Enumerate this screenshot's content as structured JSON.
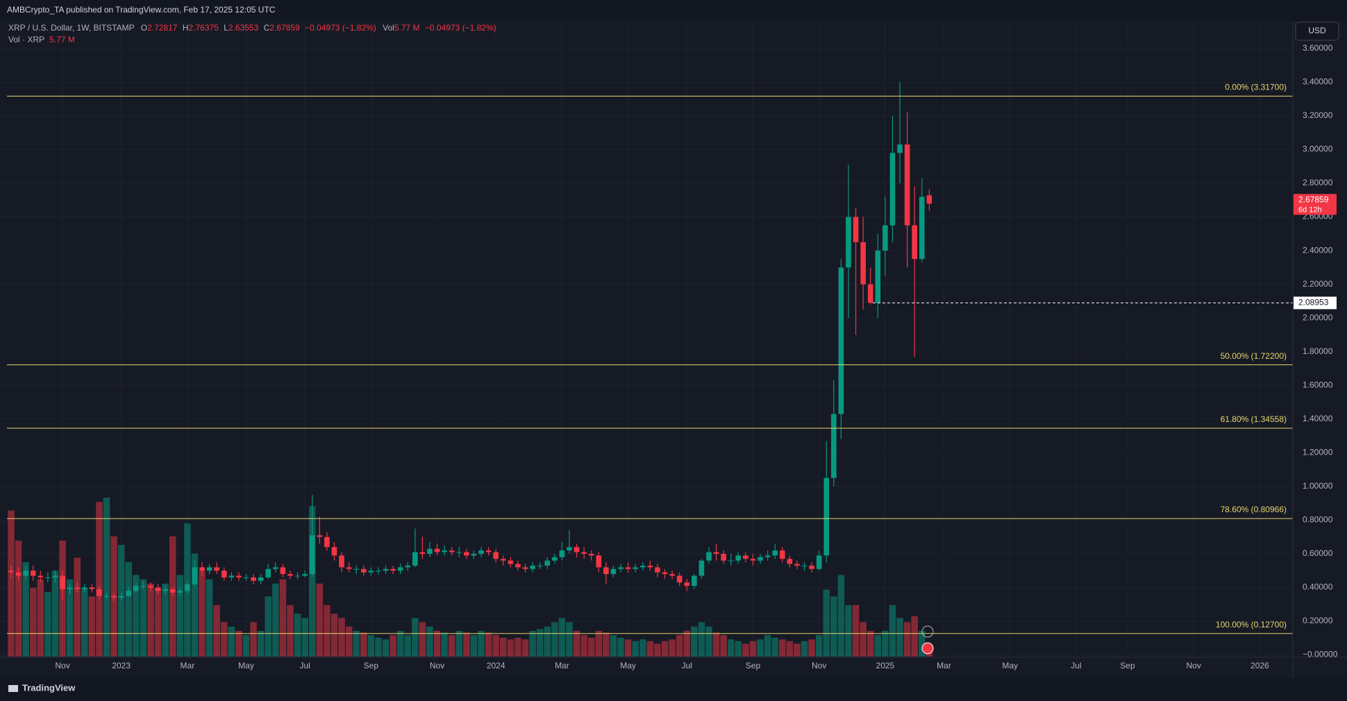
{
  "header": "AMBCrypto_TA published on TradingView.com, Feb 17, 2025 12:05 UTC",
  "footer": "TradingView",
  "currency": "USD",
  "legend": {
    "symbol": "XRP / U.S. Dollar, 1W, BITSTAMP",
    "prefixes": [
      "O",
      "H",
      "L",
      "C"
    ],
    "change": "−0.04973 (−1.82%)",
    "volume_prefix": "Vol",
    "volume": "5.77 M",
    "volume_title": "Vol · XRP"
  },
  "chart_data": {
    "type": "candlestick",
    "up_color": "#089981",
    "down_color": "#f23645",
    "grid": true,
    "ylim": [
      -0.01,
      3.76
    ],
    "yticks": [
      {
        "value": 0,
        "label": "−0.00000"
      },
      {
        "value": 0.2,
        "label": "0.20000"
      },
      {
        "value": 0.4,
        "label": "0.40000"
      },
      {
        "value": 0.6,
        "label": "0.60000"
      },
      {
        "value": 0.8,
        "label": "0.80000"
      },
      {
        "value": 1.0,
        "label": "1.00000"
      },
      {
        "value": 1.2,
        "label": "1.20000"
      },
      {
        "value": 1.4,
        "label": "1.40000"
      },
      {
        "value": 1.6,
        "label": "1.60000"
      },
      {
        "value": 1.8,
        "label": "1.80000"
      },
      {
        "value": 2.0,
        "label": "2.00000"
      },
      {
        "value": 2.2,
        "label": "2.20000"
      },
      {
        "value": 2.4,
        "label": "2.40000"
      },
      {
        "value": 2.6,
        "label": "2.60000"
      },
      {
        "value": 2.8,
        "label": "2.80000"
      },
      {
        "value": 3.0,
        "label": "3.00000"
      },
      {
        "value": 3.2,
        "label": "3.20000"
      },
      {
        "value": 3.4,
        "label": "3.40000"
      },
      {
        "value": 3.6,
        "label": "3.60000"
      }
    ],
    "fib_color": "#e8d66a",
    "fib_levels": [
      {
        "value": 3.317,
        "label": "0.00% (3.31700)"
      },
      {
        "value": 1.722,
        "label": "50.00% (1.72200)"
      },
      {
        "value": 1.34558,
        "label": "61.80% (1.34558)"
      },
      {
        "value": 0.80966,
        "label": "78.60% (0.80966)"
      },
      {
        "value": 0.127,
        "label": "100.00% (0.12700)"
      }
    ],
    "hline": 2.08953,
    "countdown": "6d 12h",
    "categories": [
      null,
      null,
      null,
      null,
      null,
      null,
      null,
      "Nov",
      null,
      null,
      null,
      null,
      null,
      null,
      null,
      "2023",
      null,
      null,
      null,
      null,
      null,
      null,
      null,
      null,
      "Mar",
      null,
      null,
      null,
      null,
      null,
      null,
      null,
      "May",
      null,
      null,
      null,
      null,
      null,
      null,
      null,
      "Jul",
      null,
      null,
      null,
      null,
      null,
      null,
      null,
      null,
      "Sep",
      null,
      null,
      null,
      null,
      null,
      null,
      null,
      null,
      "Nov",
      null,
      null,
      null,
      null,
      null,
      null,
      null,
      "2024",
      null,
      null,
      null,
      null,
      null,
      null,
      null,
      null,
      "Mar",
      null,
      null,
      null,
      null,
      null,
      null,
      null,
      null,
      "May",
      null,
      null,
      null,
      null,
      null,
      null,
      null,
      "Jul",
      null,
      null,
      null,
      null,
      null,
      null,
      null,
      null,
      "Sep",
      null,
      null,
      null,
      null,
      null,
      null,
      null,
      null,
      "Nov",
      null,
      null,
      null,
      null,
      null,
      null,
      null,
      null,
      "2025",
      null,
      null,
      null,
      null,
      null,
      null,
      null,
      "Mar",
      null,
      null,
      null,
      null,
      null,
      null,
      null,
      null,
      "May",
      null,
      null,
      null,
      null,
      null,
      null,
      null,
      null,
      "Jul",
      null,
      null,
      null,
      null,
      null,
      null,
      "Sep",
      null,
      null,
      null,
      null,
      null,
      null,
      null,
      null,
      "Nov",
      null,
      null,
      null,
      null,
      null,
      null,
      null,
      null,
      "2026",
      null,
      null,
      null,
      null
    ],
    "open": [
      0.5,
      0.49,
      0.47,
      0.5,
      0.47,
      0.46,
      0.46,
      0.47,
      0.39,
      0.4,
      0.39,
      0.4,
      0.39,
      0.35,
      0.35,
      0.34,
      0.35,
      0.38,
      0.41,
      0.41,
      0.4,
      0.38,
      0.39,
      0.37,
      0.38,
      0.42,
      0.52,
      0.5,
      0.52,
      0.5,
      0.46,
      0.47,
      0.46,
      0.46,
      0.44,
      0.46,
      0.51,
      0.52,
      0.48,
      0.47,
      0.47,
      0.48,
      0.71,
      0.7,
      0.64,
      0.59,
      0.52,
      0.51,
      0.51,
      0.49,
      0.5,
      0.5,
      0.51,
      0.5,
      0.52,
      0.53,
      0.61,
      0.6,
      0.63,
      0.61,
      0.62,
      0.61,
      0.61,
      0.59,
      0.6,
      0.62,
      0.61,
      0.57,
      0.56,
      0.54,
      0.52,
      0.51,
      0.53,
      0.53,
      0.56,
      0.58,
      0.62,
      0.64,
      0.61,
      0.6,
      0.59,
      0.52,
      0.48,
      0.51,
      0.52,
      0.51,
      0.52,
      0.53,
      0.52,
      0.49,
      0.48,
      0.47,
      0.43,
      0.41,
      0.47,
      0.56,
      0.61,
      0.6,
      0.56,
      0.56,
      0.59,
      0.57,
      0.56,
      0.58,
      0.59,
      0.62,
      0.57,
      0.54,
      0.53,
      0.53,
      0.51,
      0.59,
      1.05,
      1.43,
      2.3,
      2.6,
      2.45,
      2.2,
      2.09,
      2.4,
      2.55,
      2.98,
      3.03,
      2.55,
      2.35,
      2.72817,
      null,
      null,
      null,
      null,
      null,
      null,
      null,
      null,
      null,
      null,
      null,
      null,
      null,
      null,
      null,
      null,
      null,
      null,
      null,
      null,
      null,
      null,
      null,
      null,
      null,
      null,
      null,
      null,
      null,
      null,
      null,
      null,
      null,
      null,
      null,
      null,
      null,
      null,
      null,
      null,
      null,
      null,
      null,
      null,
      null,
      null,
      null,
      null,
      null
    ],
    "high": [
      0.53,
      0.52,
      0.53,
      0.53,
      0.5,
      0.49,
      0.5,
      0.5,
      0.42,
      0.43,
      0.42,
      0.42,
      0.41,
      0.37,
      0.37,
      0.37,
      0.4,
      0.43,
      0.44,
      0.43,
      0.42,
      0.41,
      0.4,
      0.4,
      0.44,
      0.56,
      0.55,
      0.54,
      0.55,
      0.52,
      0.49,
      0.49,
      0.48,
      0.48,
      0.48,
      0.54,
      0.55,
      0.54,
      0.5,
      0.49,
      0.5,
      0.95,
      0.82,
      0.73,
      0.67,
      0.61,
      0.55,
      0.53,
      0.53,
      0.52,
      0.52,
      0.53,
      0.53,
      0.54,
      0.55,
      0.75,
      0.7,
      0.67,
      0.66,
      0.65,
      0.64,
      0.64,
      0.63,
      0.62,
      0.64,
      0.64,
      0.63,
      0.59,
      0.58,
      0.56,
      0.54,
      0.55,
      0.55,
      0.58,
      0.6,
      0.67,
      0.74,
      0.66,
      0.64,
      0.62,
      0.61,
      0.55,
      0.53,
      0.54,
      0.55,
      0.54,
      0.55,
      0.56,
      0.54,
      0.51,
      0.5,
      0.49,
      0.45,
      0.48,
      0.57,
      0.64,
      0.66,
      0.62,
      0.6,
      0.61,
      0.61,
      0.6,
      0.6,
      0.62,
      0.66,
      0.64,
      0.59,
      0.56,
      0.55,
      0.55,
      0.62,
      1.27,
      1.63,
      2.35,
      2.91,
      2.65,
      2.6,
      2.3,
      2.5,
      2.72,
      3.2,
      3.4,
      3.22,
      2.78,
      2.83,
      2.76375,
      null,
      null,
      null,
      null,
      null,
      null,
      null,
      null,
      null,
      null,
      null,
      null,
      null,
      null,
      null,
      null,
      null,
      null,
      null,
      null,
      null,
      null,
      null,
      null,
      null,
      null,
      null,
      null,
      null,
      null,
      null,
      null,
      null,
      null,
      null,
      null,
      null,
      null,
      null,
      null,
      null,
      null,
      null,
      null,
      null,
      null,
      null,
      null,
      null
    ],
    "low": [
      0.46,
      0.44,
      0.45,
      0.44,
      0.43,
      0.43,
      0.43,
      0.33,
      0.36,
      0.37,
      0.37,
      0.37,
      0.33,
      0.33,
      0.32,
      0.32,
      0.34,
      0.37,
      0.39,
      0.38,
      0.36,
      0.36,
      0.35,
      0.35,
      0.36,
      0.41,
      0.47,
      0.48,
      0.48,
      0.44,
      0.44,
      0.44,
      0.44,
      0.42,
      0.42,
      0.45,
      0.49,
      0.46,
      0.45,
      0.45,
      0.46,
      0.46,
      0.66,
      0.62,
      0.56,
      0.49,
      0.49,
      0.48,
      0.47,
      0.47,
      0.48,
      0.48,
      0.48,
      0.48,
      0.5,
      0.52,
      0.57,
      0.58,
      0.59,
      0.59,
      0.59,
      0.58,
      0.57,
      0.57,
      0.58,
      0.59,
      0.55,
      0.53,
      0.52,
      0.5,
      0.49,
      0.49,
      0.51,
      0.51,
      0.54,
      0.56,
      0.6,
      0.58,
      0.57,
      0.56,
      0.49,
      0.42,
      0.46,
      0.49,
      0.49,
      0.49,
      0.5,
      0.5,
      0.46,
      0.45,
      0.45,
      0.41,
      0.38,
      0.39,
      0.45,
      0.54,
      0.56,
      0.54,
      0.53,
      0.54,
      0.55,
      0.53,
      0.54,
      0.56,
      0.57,
      0.55,
      0.52,
      0.51,
      0.5,
      0.49,
      0.5,
      0.55,
      1.0,
      1.28,
      2.0,
      1.9,
      2.05,
      2.08,
      2.0,
      2.25,
      2.45,
      2.8,
      2.3,
      1.77,
      2.33,
      2.63553,
      null,
      null,
      null,
      null,
      null,
      null,
      null,
      null,
      null,
      null,
      null,
      null,
      null,
      null,
      null,
      null,
      null,
      null,
      null,
      null,
      null,
      null,
      null,
      null,
      null,
      null,
      null,
      null,
      null,
      null,
      null,
      null,
      null,
      null,
      null,
      null,
      null,
      null,
      null,
      null,
      null,
      null,
      null,
      null,
      null,
      null,
      null,
      null,
      null
    ],
    "close": [
      0.49,
      0.47,
      0.5,
      0.47,
      0.46,
      0.46,
      0.47,
      0.39,
      0.4,
      0.39,
      0.4,
      0.39,
      0.35,
      0.35,
      0.34,
      0.35,
      0.38,
      0.41,
      0.41,
      0.4,
      0.38,
      0.39,
      0.37,
      0.38,
      0.42,
      0.52,
      0.5,
      0.52,
      0.5,
      0.46,
      0.47,
      0.46,
      0.46,
      0.44,
      0.46,
      0.51,
      0.52,
      0.48,
      0.47,
      0.47,
      0.48,
      0.71,
      0.7,
      0.64,
      0.59,
      0.52,
      0.51,
      0.51,
      0.49,
      0.5,
      0.5,
      0.51,
      0.5,
      0.52,
      0.53,
      0.61,
      0.6,
      0.63,
      0.61,
      0.62,
      0.61,
      0.61,
      0.59,
      0.6,
      0.62,
      0.61,
      0.57,
      0.56,
      0.54,
      0.52,
      0.51,
      0.53,
      0.53,
      0.56,
      0.58,
      0.62,
      0.64,
      0.61,
      0.6,
      0.59,
      0.52,
      0.48,
      0.51,
      0.52,
      0.51,
      0.52,
      0.53,
      0.52,
      0.49,
      0.48,
      0.47,
      0.43,
      0.41,
      0.47,
      0.56,
      0.61,
      0.6,
      0.56,
      0.56,
      0.59,
      0.57,
      0.56,
      0.58,
      0.59,
      0.62,
      0.57,
      0.54,
      0.53,
      0.53,
      0.51,
      0.59,
      1.05,
      1.43,
      2.3,
      2.6,
      2.45,
      2.2,
      2.09,
      2.4,
      2.55,
      2.98,
      3.03,
      2.55,
      2.35,
      2.72,
      2.67859,
      null,
      null,
      null,
      null,
      null,
      null,
      null,
      null,
      null,
      null,
      null,
      null,
      null,
      null,
      null,
      null,
      null,
      null,
      null,
      null,
      null,
      null,
      null,
      null,
      null,
      null,
      null,
      null,
      null,
      null,
      null,
      null,
      null,
      null,
      null,
      null,
      null,
      null,
      null,
      null,
      null,
      null,
      null,
      null,
      null,
      null,
      null,
      null,
      null
    ],
    "volume": [
      170,
      135,
      110,
      80,
      90,
      75,
      100,
      135,
      90,
      115,
      80,
      70,
      180,
      185,
      140,
      130,
      110,
      95,
      90,
      85,
      80,
      85,
      140,
      95,
      155,
      120,
      100,
      90,
      60,
      40,
      35,
      30,
      25,
      40,
      30,
      70,
      85,
      90,
      60,
      50,
      45,
      175,
      85,
      60,
      50,
      45,
      35,
      30,
      28,
      25,
      22,
      20,
      25,
      30,
      25,
      45,
      40,
      35,
      30,
      28,
      25,
      30,
      28,
      25,
      30,
      28,
      25,
      22,
      20,
      22,
      20,
      30,
      32,
      35,
      40,
      45,
      40,
      30,
      25,
      22,
      30,
      28,
      25,
      22,
      20,
      18,
      20,
      18,
      15,
      18,
      20,
      25,
      30,
      35,
      40,
      35,
      28,
      25,
      20,
      18,
      15,
      18,
      20,
      25,
      22,
      20,
      18,
      15,
      18,
      20,
      25,
      78,
      70,
      95,
      60,
      60,
      40,
      30,
      25,
      30,
      60,
      45,
      40,
      47,
      30,
      5.77,
      null,
      null,
      null,
      null,
      null,
      null,
      null,
      null,
      null,
      null,
      null,
      null,
      null,
      null,
      null,
      null,
      null,
      null,
      null,
      null,
      null,
      null,
      null,
      null,
      null,
      null,
      null,
      null,
      null,
      null,
      null,
      null,
      null,
      null,
      null,
      null,
      null,
      null,
      null,
      null,
      null,
      null,
      null,
      null,
      null,
      null,
      null,
      null,
      null
    ]
  }
}
